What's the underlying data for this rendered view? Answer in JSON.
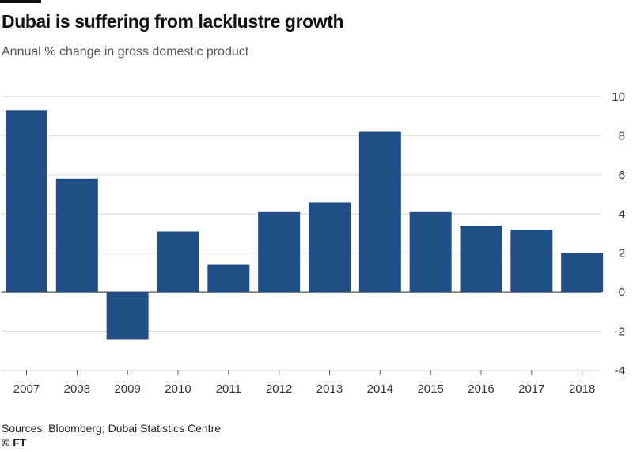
{
  "header": {
    "title": "Dubai is suffering from lacklustre growth",
    "subtitle": "Annual % change in gross domestic product"
  },
  "footer": {
    "source": "Sources: Bloomberg; Dubai Statistics Centre",
    "credit": "© FT"
  },
  "colors": {
    "bar": "#1f4f85",
    "grid": "#d9d4cc",
    "zero_line": "#555555",
    "tick_text": "#333333"
  },
  "chart_data": {
    "type": "bar",
    "title": "Dubai is suffering from lacklustre growth",
    "subtitle": "Annual % change in gross domestic product",
    "categories": [
      "2007",
      "2008",
      "2009",
      "2010",
      "2011",
      "2012",
      "2013",
      "2014",
      "2015",
      "2016",
      "2017",
      "2018"
    ],
    "values": [
      9.3,
      5.8,
      -2.4,
      3.1,
      1.4,
      4.1,
      4.6,
      8.2,
      4.1,
      3.4,
      3.2,
      2.0
    ],
    "ylim": [
      -4,
      10
    ],
    "yticks": [
      -4,
      -2,
      0,
      2,
      4,
      6,
      8,
      10
    ],
    "y_axis_side": "right",
    "grid": true,
    "xlabel": "",
    "ylabel": ""
  }
}
